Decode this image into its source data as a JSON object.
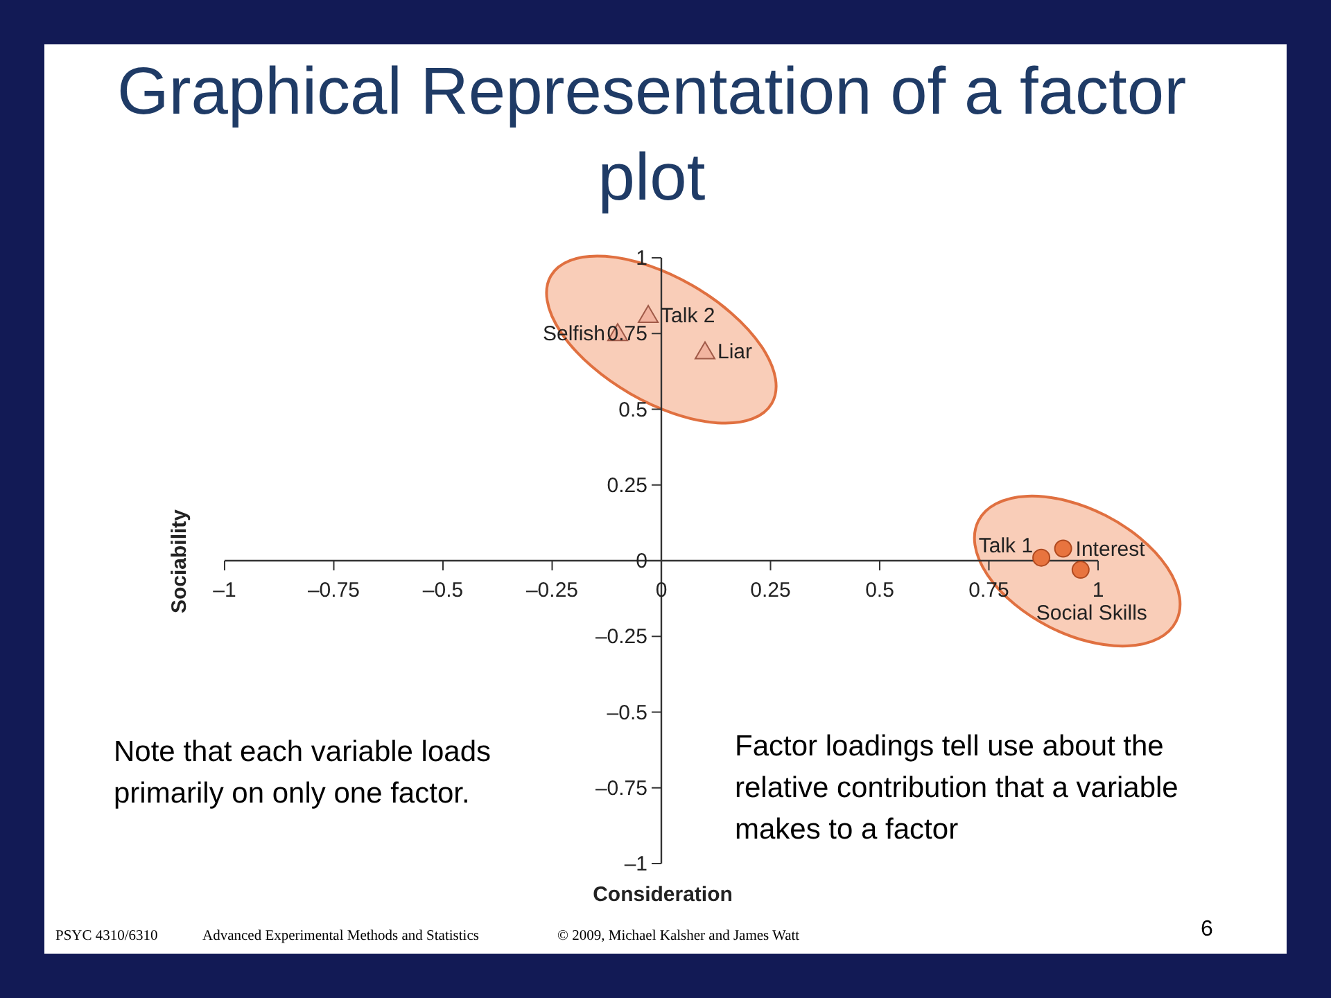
{
  "chart_data": {
    "type": "scatter",
    "title": "Graphical Representation of a factor plot",
    "xlabel": "Consideration",
    "ylabel": "Sociability",
    "xlim": [
      -1,
      1
    ],
    "ylim": [
      -1,
      1
    ],
    "xticks": [
      {
        "value": -1,
        "label": "–1"
      },
      {
        "value": -0.75,
        "label": "–0.75"
      },
      {
        "value": -0.5,
        "label": "–0.5"
      },
      {
        "value": -0.25,
        "label": "–0.25"
      },
      0,
      0.25,
      0.5,
      0.75,
      1
    ],
    "yticks": [
      {
        "value": -1,
        "label": "–1"
      },
      {
        "value": -0.75,
        "label": "–0.75"
      },
      {
        "value": -0.5,
        "label": "–0.5"
      },
      {
        "value": -0.25,
        "label": "–0.25"
      },
      0,
      0.25,
      0.5,
      0.75,
      1
    ],
    "grid": false,
    "legend": false,
    "series": [
      {
        "name": "Talk 2",
        "color": "#f2b4a0",
        "marker": "triangle",
        "x": [
          -0.03
        ],
        "values": [
          0.81
        ]
      },
      {
        "name": "Selfish",
        "color": "#f2b4a0",
        "marker": "triangle",
        "x": [
          -0.1
        ],
        "values": [
          0.75
        ]
      },
      {
        "name": "Liar",
        "color": "#f2b4a0",
        "marker": "triangle",
        "x": [
          0.1
        ],
        "values": [
          0.69
        ]
      },
      {
        "name": "Talk 1",
        "color": "#e8743f",
        "marker": "circle",
        "x": [
          0.87
        ],
        "values": [
          0.01
        ]
      },
      {
        "name": "Interest",
        "color": "#e8743f",
        "marker": "circle",
        "x": [
          0.92
        ],
        "values": [
          0.04
        ]
      },
      {
        "name": "Social Skills",
        "color": "#e8743f",
        "marker": "circle",
        "x": [
          0.96
        ],
        "values": [
          -0.03
        ]
      }
    ],
    "annotations": [
      "Note that each variable loads primarily on only one factor.",
      "Factor loadings tell use about the relative contribution that a variable makes to a factor",
      "PSYC 4310/6310",
      "Advanced Experimental Methods and Statistics",
      "© 2009, Michael Kalsher and James Watt",
      "6"
    ]
  }
}
